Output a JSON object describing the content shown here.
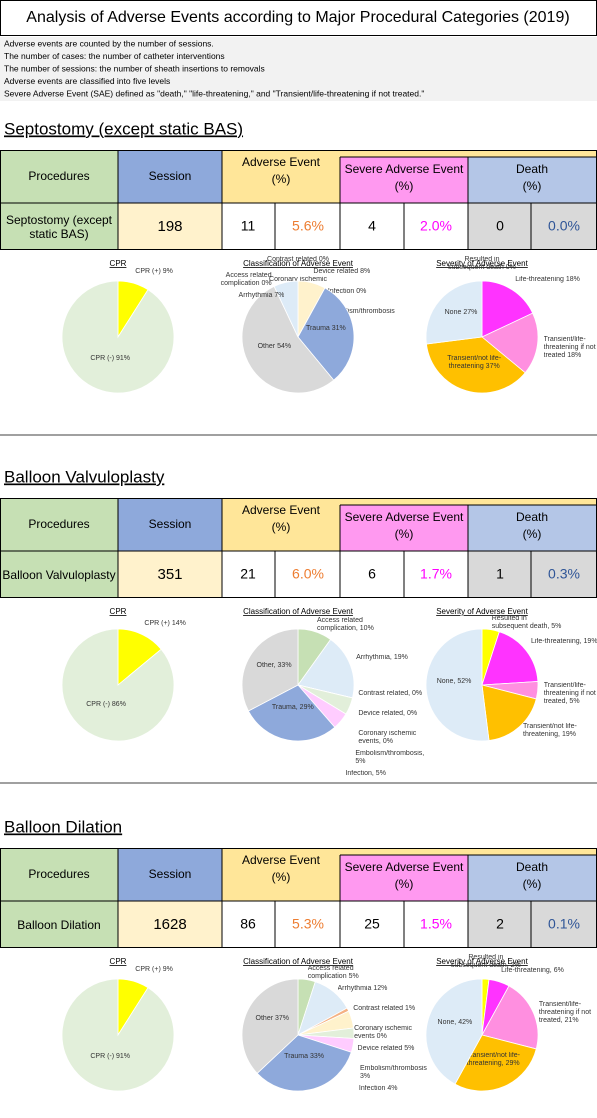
{
  "header": {
    "title": "Analysis of Adverse Events according to Major Procedural Categories (2019)"
  },
  "notes": [
    "Adverse events are counted by the number of sessions.",
    "The number of cases: the number of catheter interventions",
    "The number of sessions: the number of sheath insertions to removals",
    "Adverse events are classified into five levels",
    "Severe Adverse Event (SAE) defined as \"death,\" \"life-threatening,\" and \"Transient/life-threatening if not treated.\""
  ],
  "table_headers": {
    "procedures": "Procedures",
    "session": "Session",
    "adverse_event": [
      "Adverse Event",
      "(%)"
    ],
    "severe_adverse_event": [
      "Severe Adverse Event",
      "(%)"
    ],
    "death": [
      "Death",
      "(%)"
    ]
  },
  "sections": [
    {
      "title": "Septostomy (except static BAS)",
      "row": {
        "procedure": "Septostomy (except static BAS)",
        "session": 198,
        "adverse_event": 11,
        "adverse_event_pct": "5.6%",
        "severe_adverse_event": 4,
        "severe_adverse_event_pct": "2.0%",
        "death": 0,
        "death_pct": "0.0%"
      },
      "charts": [
        {
          "title": "CPR",
          "slices": [
            {
              "name": "CPR (+)",
              "value": 9,
              "value_label": "9%",
              "color": "#ffff00"
            },
            {
              "name": "CPR (-)",
              "value": 91,
              "value_label": "91%",
              "color": "#e2efda"
            }
          ]
        },
        {
          "title": "Classification of Adverse Event",
          "slices": [
            {
              "name": "Contrast related",
              "value": 0,
              "value_label": "0%",
              "color": "#f4b183"
            },
            {
              "name": "Coronary ischemic events",
              "value": 0,
              "value_label": "0%",
              "color": "#fce4d6"
            },
            {
              "name": "Device related",
              "value": 8,
              "value_label": "8%",
              "color": "#fff2cc"
            },
            {
              "name": "Infection",
              "value": 0,
              "value_label": "0%",
              "color": "#ffccff"
            },
            {
              "name": "Embolism/thrombosis",
              "value": 0,
              "value_label": "0%",
              "color": "#e2efda"
            },
            {
              "name": "Trauma",
              "value": 31,
              "value_label": "31%",
              "color": "#8ea9db"
            },
            {
              "name": "Other",
              "value": 54,
              "value_label": "54%",
              "color": "#d9d9d9"
            },
            {
              "name": "Access related complication",
              "value": 0,
              "value_label": "0%",
              "color": "#c6e0b4"
            },
            {
              "name": "Arrhythmia",
              "value": 7,
              "value_label": "7%",
              "color": "#ddebf7"
            }
          ]
        },
        {
          "title": "Severity of Adverse Event",
          "slices": [
            {
              "name": "Resulted in subsequent death",
              "value": 0,
              "value_label": "0%",
              "color": "#ffff00"
            },
            {
              "name": "Life-threatening",
              "value": 18,
              "value_label": "18%",
              "color": "#ff33ff"
            },
            {
              "name": "Transient/life-threatening if not treated",
              "value": 18,
              "value_label": "18%",
              "color": "#ff8fe0"
            },
            {
              "name": "Transient/not life-threatening",
              "value": 37,
              "value_label": "37%",
              "color": "#ffc000"
            },
            {
              "name": "None",
              "value": 27,
              "value_label": "27%",
              "color": "#ddebf7"
            }
          ]
        }
      ]
    },
    {
      "title": "Balloon Valvuloplasty",
      "row": {
        "procedure": "Balloon Valvuloplasty",
        "session": 351,
        "adverse_event": 21,
        "adverse_event_pct": "6.0%",
        "severe_adverse_event": 6,
        "severe_adverse_event_pct": "1.7%",
        "death": 1,
        "death_pct": "0.3%"
      },
      "charts": [
        {
          "title": "CPR",
          "slices": [
            {
              "name": "CPR (+)",
              "value": 14,
              "value_label": "14%",
              "color": "#ffff00"
            },
            {
              "name": "CPR (-)",
              "value": 86,
              "value_label": "86%",
              "color": "#e2efda"
            }
          ]
        },
        {
          "title": "Classification of Adverse Event",
          "slices": [
            {
              "name": "Access related complication,",
              "value": 10,
              "value_label": "10%",
              "color": "#c6e0b4"
            },
            {
              "name": "Arrhythmia,",
              "value": 19,
              "value_label": "19%",
              "color": "#ddebf7"
            },
            {
              "name": "Contrast related,",
              "value": 0,
              "value_label": "0%",
              "color": "#f4b183"
            },
            {
              "name": "Device related,",
              "value": 0,
              "value_label": "0%",
              "color": "#fff2cc"
            },
            {
              "name": "Coronary ischemic events,",
              "value": 0,
              "value_label": "0%",
              "color": "#fce4d6"
            },
            {
              "name": "Embolism/thrombosis,",
              "value": 5,
              "value_label": "5%",
              "color": "#e2efda"
            },
            {
              "name": "Infection,",
              "value": 5,
              "value_label": "5%",
              "color": "#ffccff"
            },
            {
              "name": "Trauma,",
              "value": 29,
              "value_label": "29%",
              "color": "#8ea9db"
            },
            {
              "name": "Other,",
              "value": 33,
              "value_label": "33%",
              "color": "#d9d9d9"
            }
          ]
        },
        {
          "title": "Severity of Adverse Event",
          "slices": [
            {
              "name": "Resulted in subsequent death,",
              "value": 5,
              "value_label": "5%",
              "color": "#ffff00"
            },
            {
              "name": "Life-threatening,",
              "value": 19,
              "value_label": "19%",
              "color": "#ff33ff"
            },
            {
              "name": "Transient/life-threatening if not treated,",
              "value": 5,
              "value_label": "5%",
              "color": "#ff8fe0"
            },
            {
              "name": "Transient/not life-threatening,",
              "value": 19,
              "value_label": "19%",
              "color": "#ffc000"
            },
            {
              "name": "None,",
              "value": 52,
              "value_label": "52%",
              "color": "#ddebf7"
            }
          ]
        }
      ]
    },
    {
      "title": "Balloon Dilation",
      "row": {
        "procedure": "Balloon Dilation",
        "session": 1628,
        "adverse_event": 86,
        "adverse_event_pct": "5.3%",
        "severe_adverse_event": 25,
        "severe_adverse_event_pct": "1.5%",
        "death": 2,
        "death_pct": "0.1%"
      },
      "charts": [
        {
          "title": "CPR",
          "slices": [
            {
              "name": "CPR (+)",
              "value": 9,
              "value_label": "9%",
              "color": "#ffff00"
            },
            {
              "name": "CPR (-)",
              "value": 91,
              "value_label": "91%",
              "color": "#e2efda"
            }
          ]
        },
        {
          "title": "Classification of Adverse Event",
          "slices": [
            {
              "name": "Access related complication",
              "value": 5,
              "value_label": "5%",
              "color": "#c6e0b4"
            },
            {
              "name": "Arrhythmia",
              "value": 12,
              "value_label": "12%",
              "color": "#ddebf7"
            },
            {
              "name": "Contrast related",
              "value": 1,
              "value_label": "1%",
              "color": "#f4b183"
            },
            {
              "name": "Coronary ischemic events",
              "value": 0,
              "value_label": "0%",
              "color": "#fce4d6"
            },
            {
              "name": "Device related",
              "value": 5,
              "value_label": "5%",
              "color": "#fff2cc"
            },
            {
              "name": "Embolism/thrombosis",
              "value": 3,
              "value_label": "3%",
              "color": "#e2efda"
            },
            {
              "name": "Infection",
              "value": 4,
              "value_label": "4%",
              "color": "#ffccff"
            },
            {
              "name": "Trauma",
              "value": 33,
              "value_label": "33%",
              "color": "#8ea9db"
            },
            {
              "name": "Other",
              "value": 37,
              "value_label": "37%",
              "color": "#d9d9d9"
            }
          ]
        },
        {
          "title": "Severity of Adverse Event",
          "slices": [
            {
              "name": "Resulted in subsequent death,",
              "value": 2,
              "value_label": "2%",
              "color": "#ffff00"
            },
            {
              "name": "Life-threatening,",
              "value": 6,
              "value_label": "6%",
              "color": "#ff33ff"
            },
            {
              "name": "Transient/life-threatening if not treated,",
              "value": 21,
              "value_label": "21%",
              "color": "#ff8fe0"
            },
            {
              "name": "Transient/not life-threatening,",
              "value": 29,
              "value_label": "29%",
              "color": "#ffc000"
            },
            {
              "name": "None,",
              "value": 42,
              "value_label": "42%",
              "color": "#ddebf7"
            }
          ]
        }
      ]
    }
  ]
}
